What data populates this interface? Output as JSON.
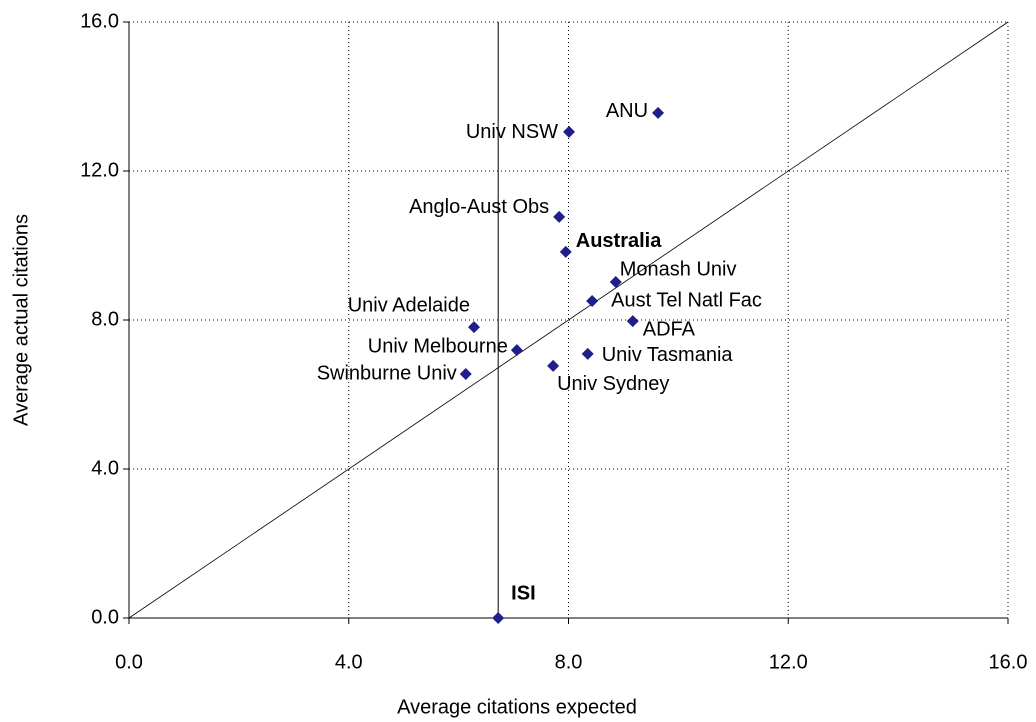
{
  "chart_data": {
    "type": "scatter",
    "x_label": "Average citations expected",
    "y_label": "Average actual citations",
    "labels": [
      "ANU",
      "Univ NSW",
      "Anglo-Aust Obs",
      "Australia",
      "Monash Univ",
      "Aust Tel Natl Fac",
      "ADFA",
      "Univ Adelaide",
      "Univ Melbourne",
      "Univ Tasmania",
      "Univ Sydney",
      "Swinburne Univ",
      "ISI"
    ],
    "label_colors": [
      "#000000",
      "#000000",
      "#000000",
      "#000000",
      "#a6a6a6",
      "#000000",
      "#a6a6a6",
      "#a6a6a6",
      "#000000",
      "#000000",
      "#000000",
      "#a6a6a6",
      "#000000"
    ],
    "label_bold": [
      false,
      false,
      false,
      true,
      false,
      false,
      false,
      false,
      false,
      false,
      false,
      false,
      true
    ],
    "x": [
      9.63,
      8.01,
      7.83,
      7.95,
      8.86,
      8.43,
      9.17,
      6.28,
      7.06,
      8.35,
      7.72,
      6.13,
      6.72
    ],
    "values": [
      13.56,
      13.05,
      10.77,
      9.83,
      9.02,
      8.51,
      7.97,
      7.81,
      7.19,
      7.09,
      6.77,
      6.55,
      0
    ],
    "color": "#1f1f8c",
    "xlim": [
      0,
      16
    ],
    "ylim": [
      0,
      16
    ],
    "xticks": [
      {
        "value": 0,
        "label": "0.0"
      },
      {
        "value": 4,
        "label": "4.0"
      },
      {
        "value": 8,
        "label": "8.0"
      },
      {
        "value": 12,
        "label": "12.0"
      },
      {
        "value": 16,
        "label": "16.0"
      }
    ],
    "yticks": [
      {
        "value": 0,
        "label": "0.0"
      },
      {
        "value": 4,
        "label": "4.0"
      },
      {
        "value": 8,
        "label": "8.0"
      },
      {
        "value": 12,
        "label": "12.0"
      },
      {
        "value": 16,
        "label": "16.0"
      }
    ],
    "grid": true,
    "diagonal": true,
    "reference_vertical_at_label": "ISI"
  }
}
